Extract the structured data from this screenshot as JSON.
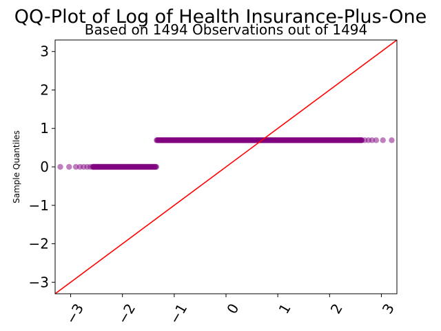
{
  "chart_data": {
    "type": "scatter",
    "title": "QQ-Plot of Log of Health Insurance-Plus-One",
    "subtitle": "Based on 1494 Observations out of 1494",
    "xlabel": "",
    "ylabel": "Sample Quantiles",
    "xlim": [
      -3.3,
      3.3
    ],
    "ylim": [
      -3.3,
      3.3
    ],
    "x_ticks": [
      -3,
      -2,
      -1,
      0,
      1,
      2,
      3
    ],
    "y_ticks": [
      -3,
      -2,
      -1,
      0,
      1,
      2,
      3
    ],
    "x_tick_labels": [
      "−3",
      "−2",
      "−1",
      "0",
      "1",
      "2",
      "3"
    ],
    "y_tick_labels": [
      "−3",
      "−2",
      "−1",
      "0",
      "1",
      "2",
      "3"
    ],
    "grid": false,
    "point_color": "#800080",
    "line_color": "#ff0000",
    "reference_line": {
      "slope": 1,
      "intercept": 0
    },
    "clusters": [
      {
        "y": 0.0,
        "x_range": [
          -3.2,
          -1.34
        ],
        "isolated_x": [
          -3.2,
          -3.03,
          -2.9,
          -2.82,
          -2.75,
          -2.68,
          -2.62,
          -2.57
        ]
      },
      {
        "y": 0.693,
        "x_range": [
          -1.34,
          3.2
        ],
        "isolated_x": [
          2.62,
          2.68,
          2.75,
          2.82,
          2.9,
          3.03,
          3.2
        ]
      }
    ]
  }
}
